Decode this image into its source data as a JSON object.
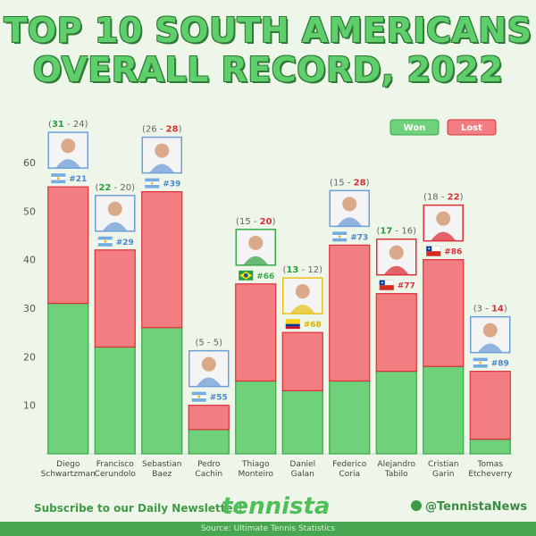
{
  "title_line1": "TOP 10 SOUTH AMERICANS",
  "title_line2": "OVERALL RECORD, 2022",
  "chart_data": {
    "type": "bar",
    "stacked": true,
    "categories": [
      "Diego\nSchwartzman",
      "Francisco\nCerundolo",
      "Sebastian\nBaez",
      "Pedro\nCachin",
      "Thiago\nMonteiro",
      "Daniel\nGalan",
      "Federico\nCoria",
      "Alejandro\nTabilo",
      "Cristian\nGarin",
      "Tomas\nEtcheverry"
    ],
    "series": [
      {
        "name": "Won",
        "color": "#6fd27a",
        "values": [
          31,
          22,
          26,
          5,
          15,
          13,
          15,
          17,
          18,
          3
        ]
      },
      {
        "name": "Lost",
        "color": "#f27e82",
        "values": [
          24,
          20,
          28,
          5,
          20,
          12,
          28,
          16,
          22,
          14
        ]
      }
    ],
    "ylim": [
      0,
      60
    ],
    "yticks": [
      10,
      20,
      30,
      40,
      50,
      60
    ],
    "grid": false,
    "legend": "top-right",
    "record_labels": [
      {
        "won": "31",
        "lost": "24",
        "bold": "won"
      },
      {
        "won": "22",
        "lost": "20",
        "bold": "won"
      },
      {
        "won": "26",
        "lost": "28",
        "bold": "lost"
      },
      {
        "won": "5",
        "lost": "5",
        "bold": "none"
      },
      {
        "won": "15",
        "lost": "20",
        "bold": "lost"
      },
      {
        "won": "13",
        "lost": "12",
        "bold": "won"
      },
      {
        "won": "15",
        "lost": "28",
        "bold": "lost"
      },
      {
        "won": "17",
        "lost": "16",
        "bold": "won"
      },
      {
        "won": "18",
        "lost": "22",
        "bold": "lost"
      },
      {
        "won": "3",
        "lost": "14",
        "bold": "lost"
      }
    ],
    "rankings": [
      "#21",
      "#29",
      "#39",
      "#55",
      "#66",
      "#68",
      "#73",
      "#77",
      "#86",
      "#89"
    ],
    "flags": [
      "argentina",
      "argentina",
      "argentina",
      "argentina",
      "brazil",
      "colombia",
      "argentina",
      "chile",
      "chile",
      "argentina"
    ],
    "photo_frame_colors": [
      "#6f9fd8",
      "#6f9fd8",
      "#6f9fd8",
      "#6f9fd8",
      "#3aa84a",
      "#e7c21b",
      "#6f9fd8",
      "#e0303a",
      "#e0303a",
      "#6f9fd8"
    ],
    "rank_colors": [
      "#4a86c9",
      "#4a86c9",
      "#4a86c9",
      "#4a86c9",
      "#3aa84a",
      "#d9b200",
      "#4a86c9",
      "#d93038",
      "#d93038",
      "#4a86c9"
    ]
  },
  "footer": {
    "subscribe": "Subscribe to our Daily Newsletter!",
    "brand": "tennista",
    "social": "@TennistaNews",
    "social_icon": "twitter-icon",
    "source": "Source: Ultimate Tennis Statistics"
  }
}
